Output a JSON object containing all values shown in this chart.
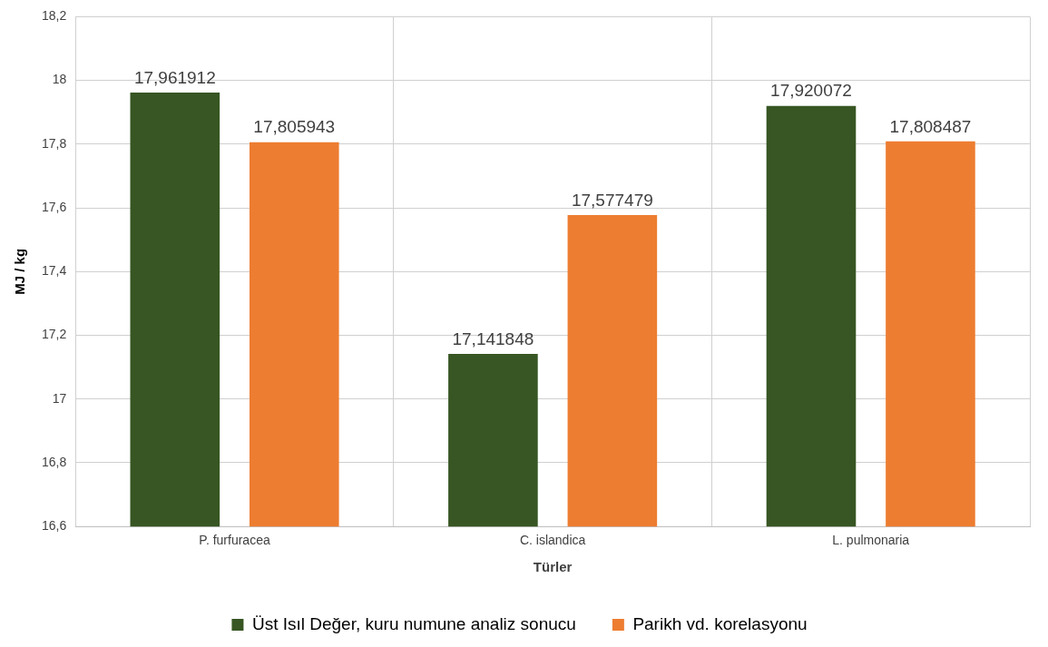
{
  "chart_data": {
    "type": "bar",
    "xlabel": "Türler",
    "ylabel": "MJ / kg",
    "categories": [
      "P. furfuracea",
      "C. islandica",
      "L. pulmonaria"
    ],
    "series": [
      {
        "name": "Üst Isıl Değer, kuru numune analiz sonucu",
        "color": "#375623",
        "values": [
          17.961912,
          17.141848,
          17.920072
        ],
        "value_labels": [
          "17,961912",
          "17,141848",
          "17,920072"
        ]
      },
      {
        "name": "Parikh vd. korelasyonu",
        "color": "#ed7d31",
        "values": [
          17.805943,
          17.577479,
          17.808487
        ],
        "value_labels": [
          "17,805943",
          "17,577479",
          "17,808487"
        ]
      }
    ],
    "ylim": [
      16.6,
      18.2
    ],
    "yticks": [
      {
        "value": 16.6,
        "label": "16,6"
      },
      {
        "value": 16.8,
        "label": "16,8"
      },
      {
        "value": 17,
        "label": "17"
      },
      {
        "value": 17.2,
        "label": "17,2"
      },
      {
        "value": 17.4,
        "label": "17,4"
      },
      {
        "value": 17.6,
        "label": "17,6"
      },
      {
        "value": 17.8,
        "label": "17,8"
      },
      {
        "value": 18,
        "label": "18"
      },
      {
        "value": 18.2,
        "label": "18,2"
      }
    ],
    "grid": true,
    "legend": "bottom"
  }
}
